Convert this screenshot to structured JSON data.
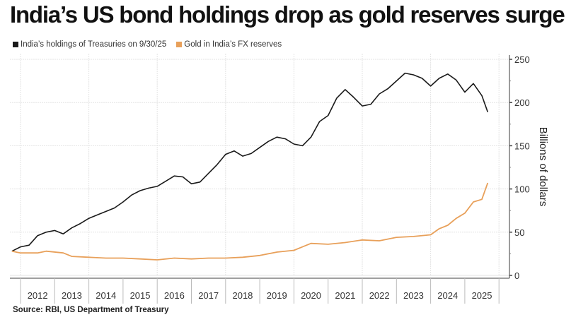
{
  "chart_data": {
    "type": "line",
    "title": "India’s US bond holdings drop as gold reserves surge",
    "xlabel": "",
    "ylabel": "Billions of dollars",
    "ylim": [
      0,
      250
    ],
    "yticks": [
      0,
      50,
      100,
      150,
      200,
      250
    ],
    "xlim": [
      2011.75,
      2026.0
    ],
    "xtick_labels": [
      "2012",
      "2013",
      "2014",
      "2015",
      "2016",
      "2017",
      "2018",
      "2019",
      "2020",
      "2021",
      "2022",
      "2023",
      "2024",
      "2025"
    ],
    "grid": true,
    "legend_position": "top-left",
    "source": "Source: RBI, US Department of Treasury",
    "series": [
      {
        "name": "India’s holdings of Treasuries on 9/30/25",
        "color": "#1a1a1a",
        "x": [
          2011.75,
          2012.0,
          2012.25,
          2012.5,
          2012.75,
          2013.0,
          2013.25,
          2013.5,
          2013.75,
          2014.0,
          2014.25,
          2014.5,
          2014.75,
          2015.0,
          2015.25,
          2015.5,
          2015.75,
          2016.0,
          2016.25,
          2016.5,
          2016.75,
          2017.0,
          2017.25,
          2017.5,
          2017.75,
          2018.0,
          2018.25,
          2018.5,
          2018.75,
          2019.0,
          2019.25,
          2019.5,
          2019.75,
          2020.0,
          2020.25,
          2020.5,
          2020.75,
          2021.0,
          2021.25,
          2021.5,
          2021.75,
          2022.0,
          2022.25,
          2022.5,
          2022.75,
          2023.0,
          2023.25,
          2023.5,
          2023.75,
          2024.0,
          2024.25,
          2024.5,
          2024.75,
          2025.0,
          2025.25,
          2025.5,
          2025.67
        ],
        "values": [
          28,
          33,
          35,
          46,
          50,
          52,
          48,
          55,
          60,
          66,
          70,
          74,
          78,
          85,
          93,
          98,
          101,
          103,
          109,
          115,
          114,
          106,
          108,
          118,
          128,
          140,
          144,
          138,
          141,
          148,
          155,
          160,
          158,
          152,
          150,
          160,
          178,
          185,
          205,
          215,
          206,
          196,
          198,
          210,
          216,
          225,
          234,
          232,
          228,
          219,
          228,
          233,
          226,
          212,
          222,
          208,
          189
        ]
      },
      {
        "name": "Gold in India’s FX reserves",
        "color": "#e8a05a",
        "x": [
          2011.75,
          2012.0,
          2012.5,
          2012.75,
          2013.25,
          2013.5,
          2014.0,
          2014.5,
          2015.0,
          2015.5,
          2016.0,
          2016.5,
          2017.0,
          2017.5,
          2018.0,
          2018.5,
          2019.0,
          2019.5,
          2020.0,
          2020.25,
          2020.5,
          2021.0,
          2021.5,
          2022.0,
          2022.5,
          2023.0,
          2023.5,
          2024.0,
          2024.25,
          2024.5,
          2024.75,
          2025.0,
          2025.25,
          2025.5,
          2025.67
        ],
        "values": [
          28,
          26,
          26,
          28,
          26,
          22,
          21,
          20,
          20,
          19,
          18,
          20,
          19,
          20,
          20,
          21,
          23,
          27,
          29,
          33,
          37,
          36,
          38,
          41,
          40,
          44,
          45,
          47,
          54,
          58,
          66,
          72,
          85,
          88,
          107
        ]
      }
    ]
  },
  "legend": [
    {
      "label": "India’s holdings of Treasuries on 9/30/25",
      "color": "#1a1a1a"
    },
    {
      "label": "Gold in India’s FX reserves",
      "color": "#e8a05a"
    }
  ]
}
